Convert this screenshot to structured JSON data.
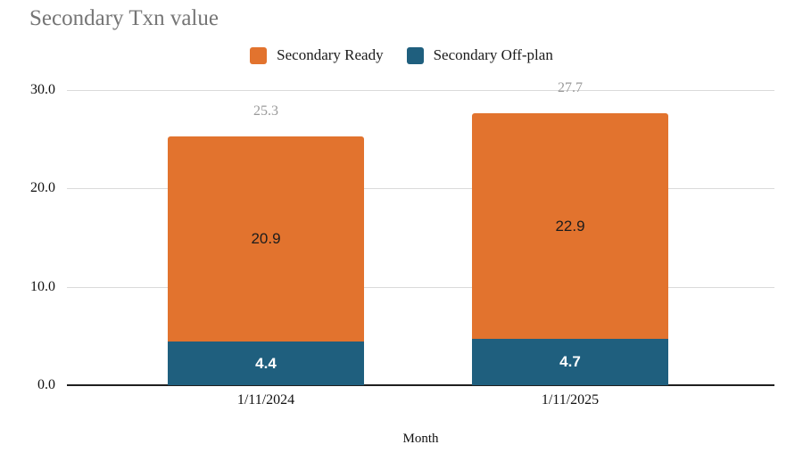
{
  "chart_data": {
    "type": "bar",
    "stacked": true,
    "title": "Secondary Txn value",
    "xlabel": "Month",
    "ylabel": "",
    "categories": [
      "1/11/2024",
      "1/11/2025"
    ],
    "series": [
      {
        "name": "Secondary Ready",
        "color": "#e2732e",
        "label_color": "#1c1c1c",
        "values": [
          20.9,
          22.9
        ]
      },
      {
        "name": "Secondary Off-plan",
        "color": "#1f5f7e",
        "label_color": "#ffffff",
        "values": [
          4.4,
          4.7
        ]
      }
    ],
    "totals": [
      25.3,
      27.7
    ],
    "yticks": [
      0.0,
      10.0,
      20.0,
      30.0
    ],
    "ylim": [
      0,
      30
    ],
    "grid": true,
    "legend_position": "top",
    "colors": {
      "grid": "#dadada",
      "axis": "#1f1f1f",
      "total_label": "#9a9a9a",
      "title": "#757575"
    }
  }
}
